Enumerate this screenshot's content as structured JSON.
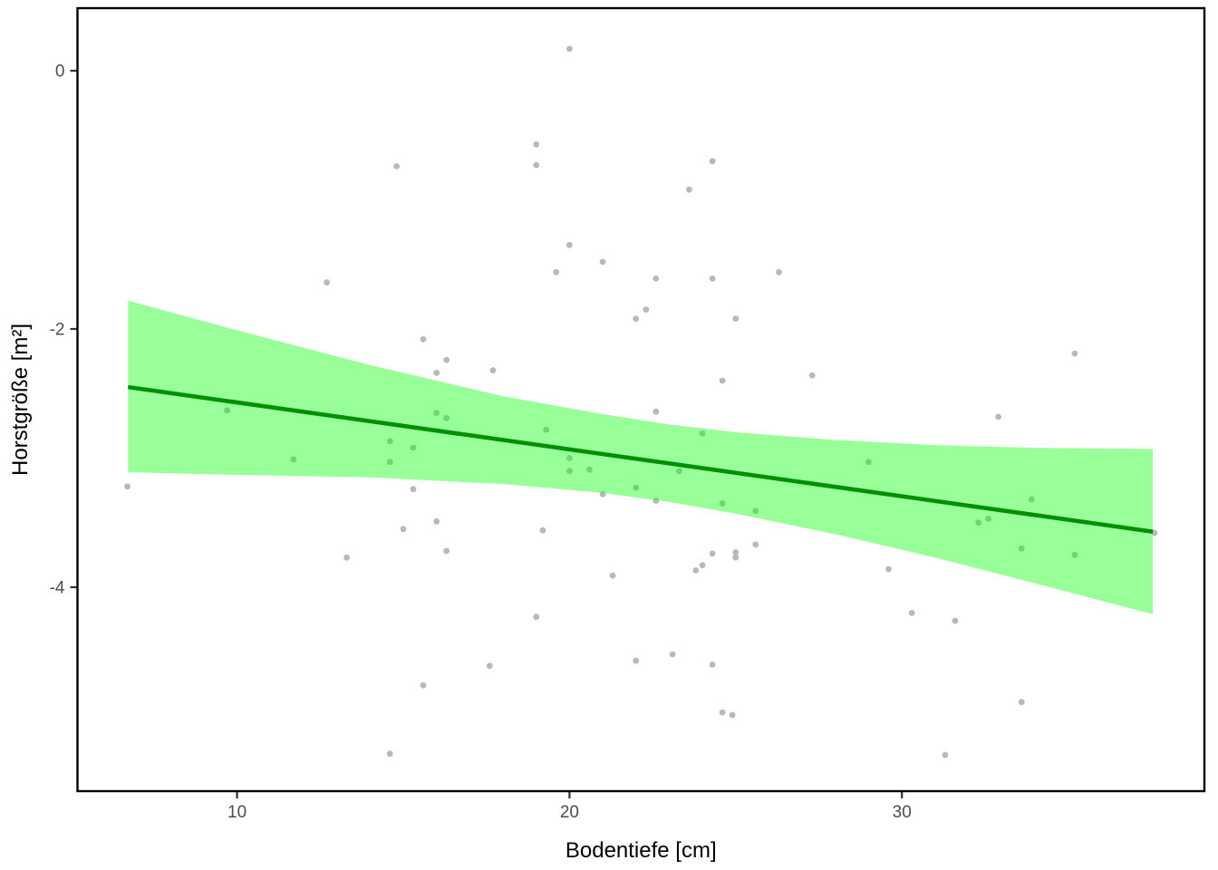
{
  "figure": {
    "background": "#FFFFFF"
  },
  "chart_data": {
    "type": "scatter",
    "title": "",
    "xlabel": "Bodentiefe [cm]",
    "ylabel": "Horstgröße [m²]",
    "x_ticks": [
      10,
      20,
      30
    ],
    "y_ticks": [
      0,
      -2,
      -4
    ],
    "xlim": [
      5.2,
      39.1
    ],
    "ylim": [
      -5.58,
      0.485
    ],
    "grid": false,
    "legend": false,
    "colors": {
      "point": "#B9B9B9",
      "regression_line": "#009000",
      "confidence_band": "rgba(0,255,0,0.40)",
      "tick_text": "#4D4D4D",
      "axis_title": "#000000",
      "panel_border": "#000000",
      "tick_mark": "#333333"
    },
    "points": [
      [
        14.8,
        -0.74
      ],
      [
        12.7,
        -1.64
      ],
      [
        15.6,
        -2.08
      ],
      [
        16.3,
        -2.24
      ],
      [
        16.0,
        -2.34
      ],
      [
        20.0,
        0.17
      ],
      [
        19.0,
        -0.57
      ],
      [
        19.0,
        -0.73
      ],
      [
        24.3,
        -0.7
      ],
      [
        23.6,
        -0.92
      ],
      [
        20.0,
        -1.35
      ],
      [
        21.0,
        -1.48
      ],
      [
        19.6,
        -1.56
      ],
      [
        22.6,
        -1.61
      ],
      [
        24.3,
        -1.61
      ],
      [
        26.3,
        -1.56
      ],
      [
        22.3,
        -1.85
      ],
      [
        22.0,
        -1.92
      ],
      [
        25.0,
        -1.92
      ],
      [
        17.7,
        -2.32
      ],
      [
        24.6,
        -2.4
      ],
      [
        27.3,
        -2.36
      ],
      [
        35.2,
        -2.19
      ],
      [
        9.7,
        -2.63
      ],
      [
        16.0,
        -2.65
      ],
      [
        16.3,
        -2.69
      ],
      [
        11.7,
        -3.01
      ],
      [
        14.6,
        -2.87
      ],
      [
        15.3,
        -2.92
      ],
      [
        14.6,
        -3.03
      ],
      [
        6.7,
        -3.22
      ],
      [
        15.3,
        -3.24
      ],
      [
        16.0,
        -3.49
      ],
      [
        15.0,
        -3.55
      ],
      [
        16.3,
        -3.72
      ],
      [
        13.3,
        -3.77
      ],
      [
        15.6,
        -4.76
      ],
      [
        14.6,
        -5.29
      ],
      [
        22.6,
        -2.64
      ],
      [
        19.3,
        -2.78
      ],
      [
        24.0,
        -2.81
      ],
      [
        20.0,
        -3.0
      ],
      [
        20.0,
        -3.1
      ],
      [
        20.6,
        -3.09
      ],
      [
        23.3,
        -3.1
      ],
      [
        22.0,
        -3.23
      ],
      [
        21.0,
        -3.28
      ],
      [
        22.6,
        -3.33
      ],
      [
        24.6,
        -3.35
      ],
      [
        25.6,
        -3.41
      ],
      [
        19.2,
        -3.56
      ],
      [
        25.6,
        -3.67
      ],
      [
        24.3,
        -3.74
      ],
      [
        25.0,
        -3.73
      ],
      [
        25.0,
        -3.77
      ],
      [
        23.8,
        -3.87
      ],
      [
        24.0,
        -3.83
      ],
      [
        21.3,
        -3.91
      ],
      [
        19.0,
        -4.23
      ],
      [
        22.0,
        -4.57
      ],
      [
        23.1,
        -4.52
      ],
      [
        17.6,
        -4.61
      ],
      [
        24.3,
        -4.6
      ],
      [
        24.6,
        -4.97
      ],
      [
        24.9,
        -4.99
      ],
      [
        32.9,
        -2.68
      ],
      [
        29.0,
        -3.03
      ],
      [
        33.9,
        -3.32
      ],
      [
        32.3,
        -3.5
      ],
      [
        32.6,
        -3.47
      ],
      [
        37.6,
        -3.58
      ],
      [
        33.6,
        -3.7
      ],
      [
        35.2,
        -3.75
      ],
      [
        29.6,
        -3.86
      ],
      [
        30.3,
        -4.2
      ],
      [
        31.6,
        -4.26
      ],
      [
        33.6,
        -4.89
      ],
      [
        31.3,
        -5.3
      ]
    ],
    "regression_line": {
      "x": [
        6.72,
        37.55
      ],
      "y": [
        -2.45,
        -3.57
      ]
    },
    "confidence_band": {
      "x": [
        6.72,
        10.0,
        14.0,
        18.0,
        21.0,
        23.0,
        25.0,
        28.0,
        31.0,
        34.0,
        37.55
      ],
      "upper": [
        -1.78,
        -2.01,
        -2.28,
        -2.52,
        -2.66,
        -2.74,
        -2.8,
        -2.86,
        -2.9,
        -2.92,
        -2.93
      ],
      "lower": [
        -3.11,
        -3.13,
        -3.15,
        -3.2,
        -3.27,
        -3.34,
        -3.43,
        -3.59,
        -3.77,
        -3.97,
        -4.21
      ]
    }
  }
}
